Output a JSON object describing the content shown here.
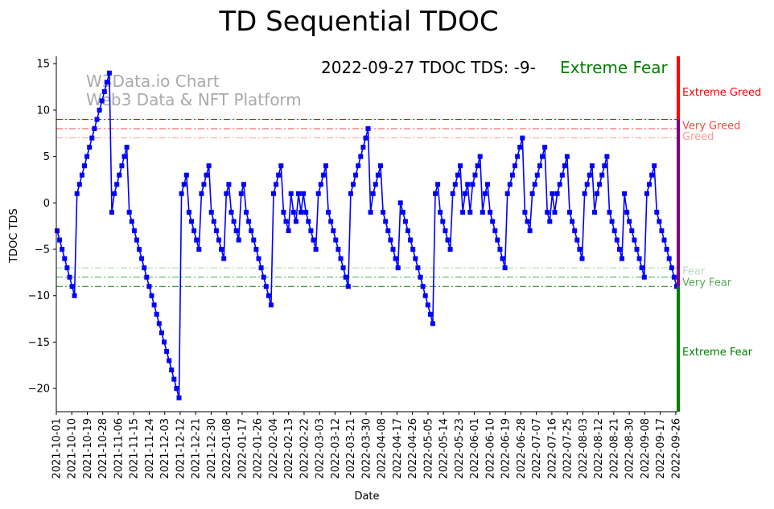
{
  "chart_data": {
    "type": "line",
    "title": "TD Sequential TDOC",
    "xlabel": "Date",
    "ylabel": "TDOC TDS",
    "ylim": [
      -22.5,
      15.8
    ],
    "yticks": [
      -20,
      -15,
      -10,
      -5,
      0,
      5,
      10,
      15
    ],
    "xticks": [
      "2021-10-01",
      "2021-10-10",
      "2021-10-19",
      "2021-10-28",
      "2021-11-06",
      "2021-11-15",
      "2021-11-24",
      "2021-12-03",
      "2021-12-12",
      "2021-12-21",
      "2021-12-30",
      "2022-01-08",
      "2022-01-17",
      "2022-01-26",
      "2022-02-04",
      "2022-02-13",
      "2022-02-22",
      "2022-03-03",
      "2022-03-12",
      "2022-03-21",
      "2022-03-30",
      "2022-04-08",
      "2022-04-17",
      "2022-04-26",
      "2022-05-05",
      "2022-05-14",
      "2022-05-23",
      "2022-06-01",
      "2022-06-10",
      "2022-06-19",
      "2022-06-28",
      "2022-07-07",
      "2022-07-16",
      "2022-07-25",
      "2022-08-03",
      "2022-08-12",
      "2022-08-21",
      "2022-08-30",
      "2022-09-08",
      "2022-09-17",
      "2022-09-26"
    ],
    "start_date": "2021-10-01",
    "end_date": "2022-09-27",
    "annotation_date_text": "2022-09-27 TDOC TDS: -9-",
    "annotation_sentiment": "Extreme Fear",
    "watermark_lines": [
      "W3Data.io Chart",
      "Web3 Data & NFT Platform"
    ],
    "thresholds": [
      {
        "value": 9,
        "label": "Very Greed",
        "color": "#ff0000"
      },
      {
        "value": 8,
        "label": "",
        "color": "#ff4444"
      },
      {
        "value": 7,
        "label": "Greed",
        "color": "#ff9999"
      },
      {
        "value": -7,
        "label": "Fear",
        "color": "#99dd99"
      },
      {
        "value": -8,
        "label": "Very Fear",
        "color": "#44aa44"
      },
      {
        "value": -9,
        "label": "",
        "color": "#008000"
      }
    ],
    "zone_labels": [
      {
        "text": "Extreme Greed",
        "value": 12,
        "color": "#ff0000"
      },
      {
        "text": "Very Greed",
        "value": 8.4,
        "color": "#ff4444"
      },
      {
        "text": "Greed",
        "value": 7.2,
        "color": "#ff9999"
      },
      {
        "text": "Fear",
        "value": -7.3,
        "color": "#bbddbb"
      },
      {
        "text": "Very Fear",
        "value": -8.5,
        "color": "#55aa55"
      },
      {
        "text": "Extreme Fear",
        "value": -16,
        "color": "#008000"
      }
    ],
    "side_bar_segments": [
      {
        "from": 9,
        "to": 15.8,
        "color": "#ff0000"
      },
      {
        "from": -9,
        "to": 9,
        "color": "#800080"
      },
      {
        "from": -22.5,
        "to": -9,
        "color": "#008000"
      }
    ],
    "series": [
      {
        "name": "TDOC TDS",
        "color": "#0000ff",
        "marker": "square",
        "values": [
          -3,
          -4,
          -5,
          -6,
          -7,
          -8,
          -9,
          -10,
          1,
          2,
          3,
          4,
          5,
          6,
          7,
          8,
          9,
          10,
          11,
          12,
          13,
          14,
          -1,
          1,
          2,
          3,
          4,
          5,
          6,
          -1,
          -2,
          -3,
          -4,
          -5,
          -6,
          -7,
          -8,
          -9,
          -10,
          -11,
          -12,
          -13,
          -14,
          -15,
          -16,
          -17,
          -18,
          -19,
          -20,
          -21,
          1,
          2,
          3,
          -1,
          -2,
          -3,
          -4,
          -5,
          1,
          2,
          3,
          4,
          -1,
          -2,
          -3,
          -4,
          -5,
          -6,
          1,
          2,
          -1,
          -2,
          -3,
          -4,
          1,
          2,
          -1,
          -2,
          -3,
          -4,
          -5,
          -6,
          -7,
          -8,
          -9,
          -10,
          -11,
          1,
          2,
          3,
          4,
          -1,
          -2,
          -3,
          1,
          -1,
          -2,
          1,
          -1,
          1,
          -1,
          -2,
          -3,
          -4,
          -5,
          1,
          2,
          3,
          4,
          -1,
          -2,
          -3,
          -4,
          -5,
          -6,
          -7,
          -8,
          -9,
          1,
          2,
          3,
          4,
          5,
          6,
          7,
          8,
          -1,
          1,
          2,
          3,
          4,
          -1,
          -2,
          -3,
          -4,
          -5,
          -6,
          -7,
          0,
          -1,
          -2,
          -3,
          -4,
          -5,
          -6,
          -7,
          -8,
          -9,
          -10,
          -11,
          -12,
          -13,
          1,
          2,
          -1,
          -2,
          -3,
          -4,
          -5,
          1,
          2,
          3,
          4,
          -1,
          1,
          2,
          -1,
          2,
          3,
          4,
          5,
          -1,
          1,
          2,
          -1,
          -2,
          -3,
          -4,
          -5,
          -6,
          -7,
          1,
          2,
          3,
          4,
          5,
          6,
          7,
          -1,
          -2,
          -3,
          1,
          2,
          3,
          4,
          5,
          6,
          -1,
          -2,
          1,
          -1,
          1,
          2,
          3,
          4,
          5,
          -1,
          -2,
          -3,
          -4,
          -5,
          -6,
          1,
          2,
          3,
          4,
          -1,
          1,
          2,
          3,
          4,
          5,
          -1,
          -2,
          -3,
          -4,
          -5,
          -6,
          1,
          -1,
          -2,
          -3,
          -4,
          -5,
          -6,
          -7,
          -8,
          1,
          2,
          3,
          4,
          -1,
          -2,
          -3,
          -4,
          -5,
          -6,
          -7,
          -8,
          -9
        ]
      }
    ]
  }
}
